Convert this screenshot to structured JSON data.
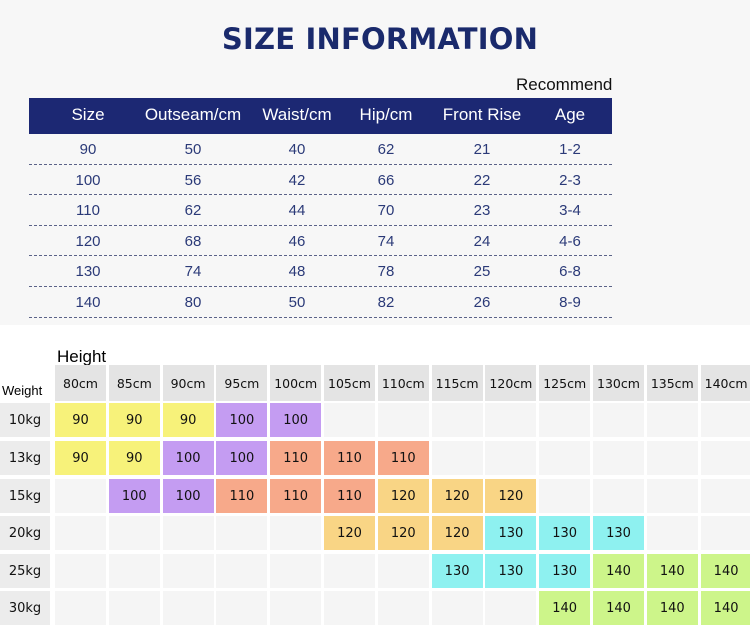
{
  "title": "SIZE INFORMATION",
  "recommend_label": "Recommend",
  "size_table": {
    "headers": [
      "Size",
      "Outseam/cm",
      "Waist/cm",
      "Hip/cm",
      "Front Rise",
      "Age"
    ],
    "rows": [
      [
        "90",
        "50",
        "40",
        "62",
        "21",
        "1-2"
      ],
      [
        "100",
        "56",
        "42",
        "66",
        "22",
        "2-3"
      ],
      [
        "110",
        "62",
        "44",
        "70",
        "23",
        "3-4"
      ],
      [
        "120",
        "68",
        "46",
        "74",
        "24",
        "4-6"
      ],
      [
        "130",
        "74",
        "48",
        "78",
        "25",
        "6-8"
      ],
      [
        "140",
        "80",
        "50",
        "82",
        "26",
        "8-9"
      ]
    ]
  },
  "fit_chart": {
    "height_label": "Height",
    "weight_label": "Weight",
    "heights": [
      "80cm",
      "85cm",
      "90cm",
      "95cm",
      "100cm",
      "105cm",
      "110cm",
      "115cm",
      "120cm",
      "125cm",
      "130cm",
      "135cm",
      "140cm"
    ],
    "weights": [
      "10kg",
      "13kg",
      "15kg",
      "20kg",
      "25kg",
      "30kg"
    ],
    "grid": [
      [
        "90",
        "90",
        "90",
        "100",
        "100",
        "",
        "",
        "",
        "",
        "",
        "",
        "",
        ""
      ],
      [
        "90",
        "90",
        "100",
        "100",
        "110",
        "110",
        "110",
        "",
        "",
        "",
        "",
        "",
        ""
      ],
      [
        "",
        "100",
        "100",
        "110",
        "110",
        "110",
        "120",
        "120",
        "120",
        "",
        "",
        "",
        ""
      ],
      [
        "",
        "",
        "",
        "",
        "",
        "120",
        "120",
        "120",
        "130",
        "130",
        "130",
        "",
        ""
      ],
      [
        "",
        "",
        "",
        "",
        "",
        "",
        "",
        "130",
        "130",
        "130",
        "140",
        "140",
        "140"
      ],
      [
        "",
        "",
        "",
        "",
        "",
        "",
        "",
        "",
        "",
        "140",
        "140",
        "140",
        "140"
      ]
    ],
    "size_colors": {
      "90": "#f7f27a",
      "100": "#c49cf2",
      "110": "#f7a98a",
      "120": "#f9d585",
      "130": "#8ef1f0",
      "140": "#cdf58a",
      "empty": "#f5f5f5"
    }
  }
}
